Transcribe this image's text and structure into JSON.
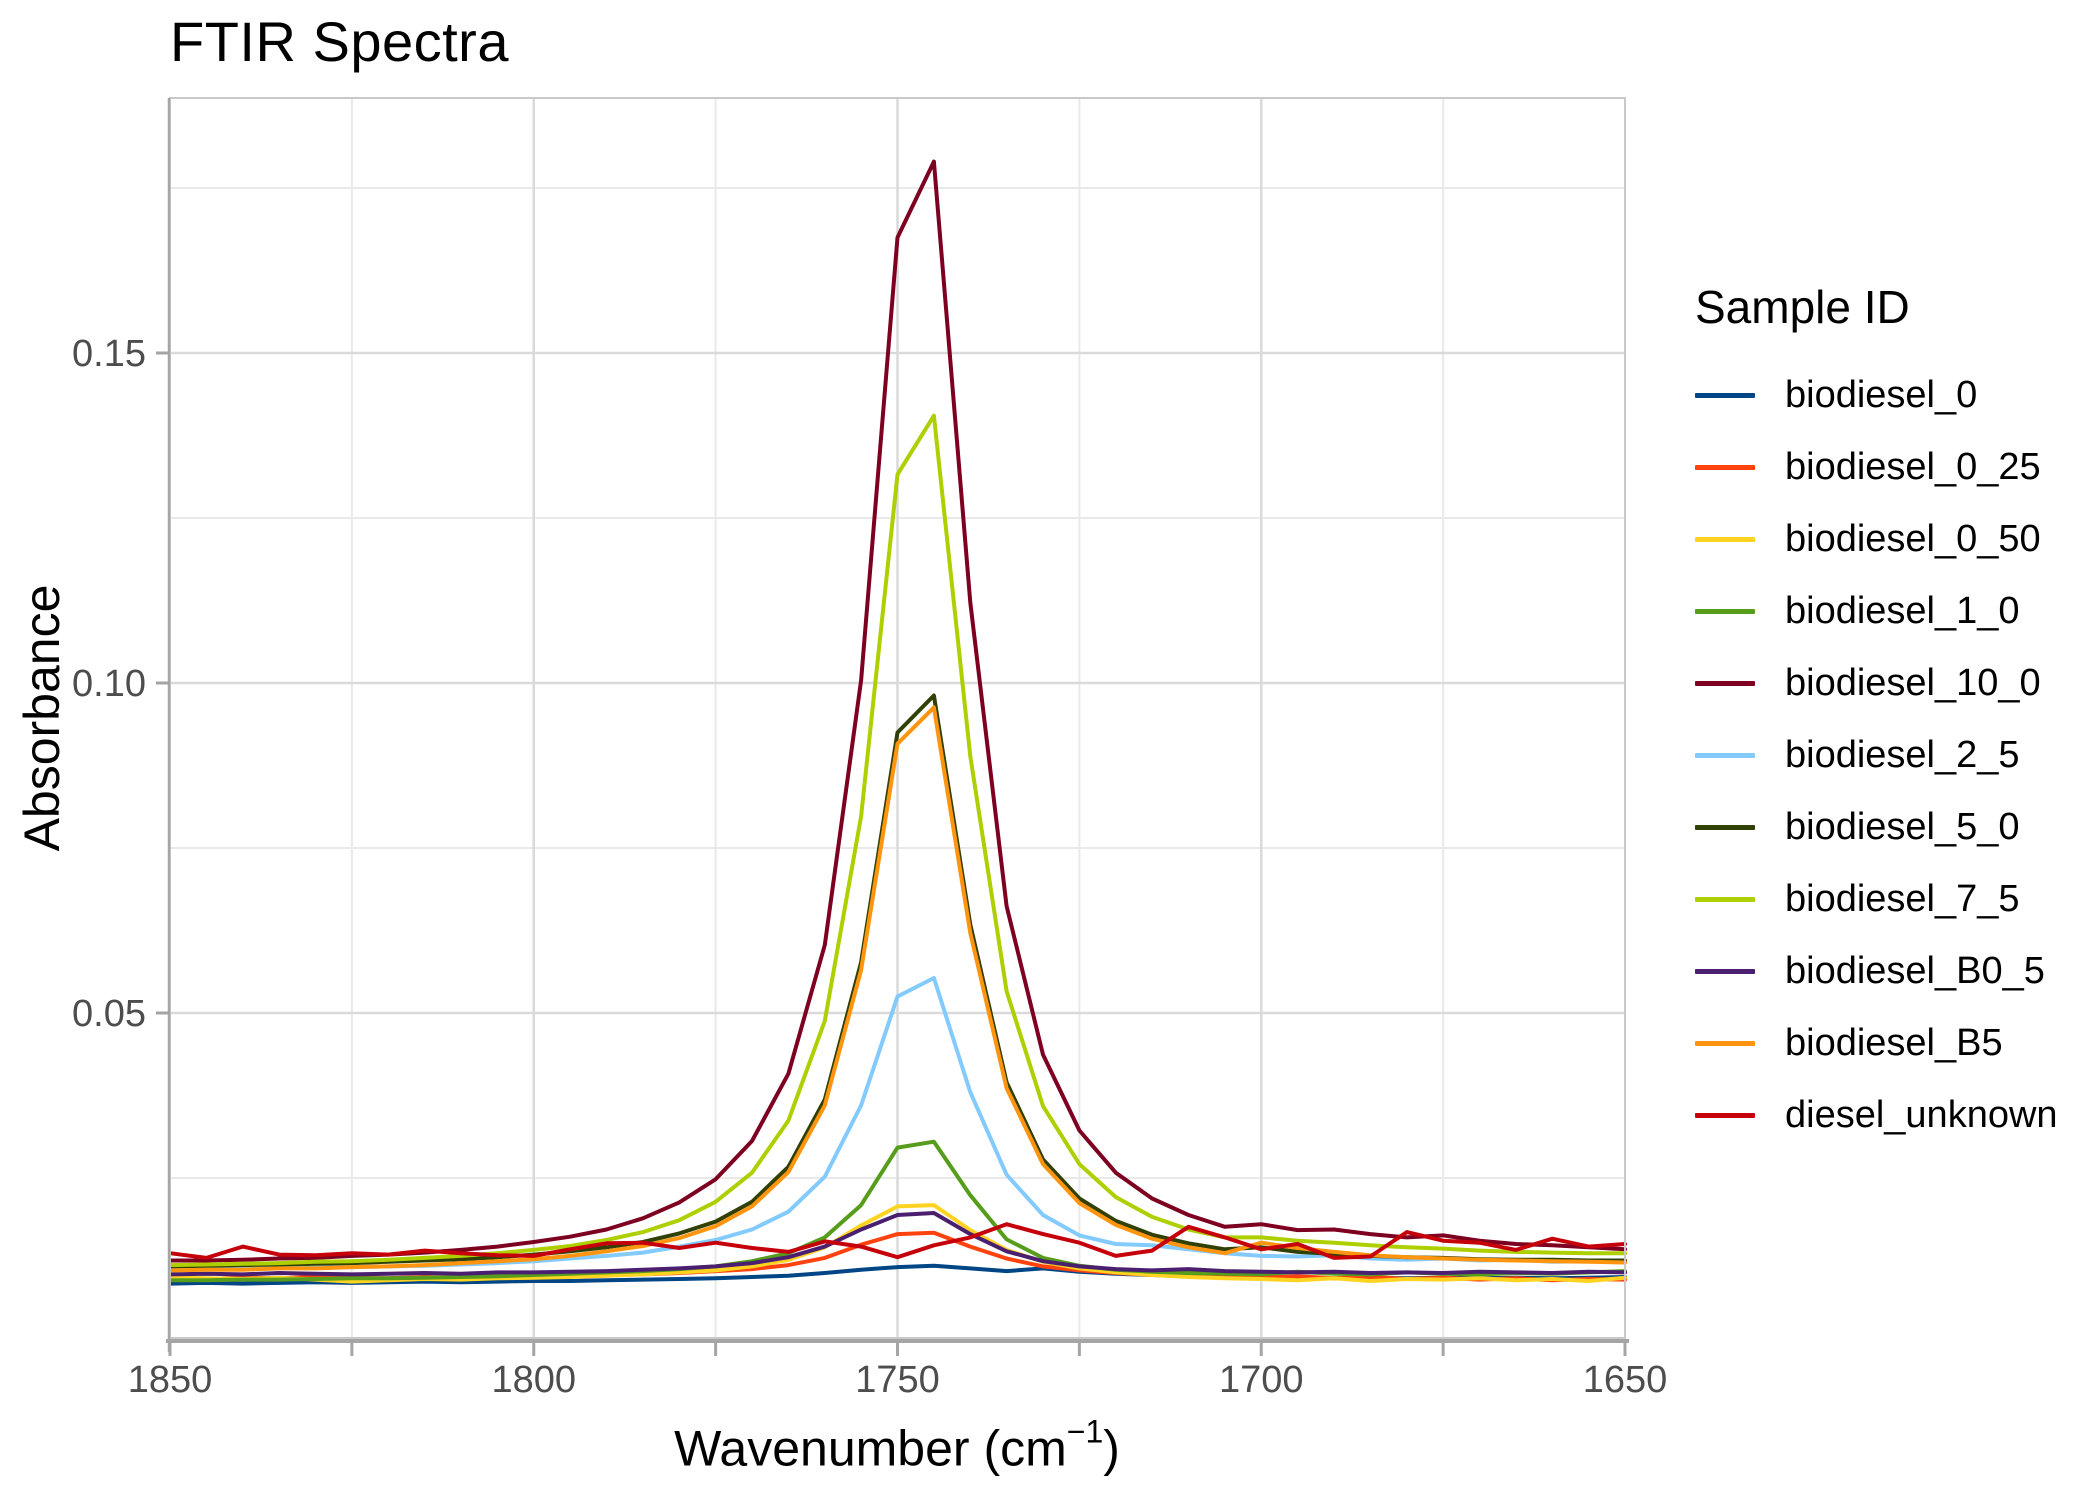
{
  "title": "FTIR Spectra",
  "style": {
    "background": "#FFFFFF",
    "grid_major": "#DADADA",
    "grid_minor": "#E9E9E9",
    "panel_border": "#C9C9C9",
    "axis_line": "#A5A5A5",
    "tick_label_color": "#4D4D4D",
    "title_color": "#000000",
    "series_stroke_width": 4
  },
  "axes": {
    "x": {
      "label_prefix": "Wavenumber (cm",
      "label_sup": "−1",
      "label_suffix": ")",
      "ticks": [
        1850,
        1800,
        1750,
        1700,
        1650
      ],
      "minor_ticks": [
        1825,
        1775,
        1725,
        1675
      ],
      "range": [
        1850,
        1650
      ],
      "reversed": true
    },
    "y": {
      "label": "Absorbance",
      "ticks": [
        0.05,
        0.1,
        0.15
      ],
      "tick_labels": [
        "0.05",
        "0.10",
        "0.15"
      ],
      "minor_ticks": [
        0.025,
        0.075,
        0.125,
        0.175
      ],
      "range": [
        0.0008,
        0.1886
      ]
    }
  },
  "legend": {
    "title": "Sample ID",
    "entries": [
      {
        "label": "biodiesel_0",
        "color": "#004586"
      },
      {
        "label": "biodiesel_0_25",
        "color": "#FF420E"
      },
      {
        "label": "biodiesel_0_50",
        "color": "#FFD320"
      },
      {
        "label": "biodiesel_1_0",
        "color": "#579D1C"
      },
      {
        "label": "biodiesel_10_0",
        "color": "#7E0021"
      },
      {
        "label": "biodiesel_2_5",
        "color": "#83CAFF"
      },
      {
        "label": "biodiesel_5_0",
        "color": "#314004"
      },
      {
        "label": "biodiesel_7_5",
        "color": "#AECF00"
      },
      {
        "label": "biodiesel_B0_5",
        "color": "#4B1F6F"
      },
      {
        "label": "biodiesel_B5",
        "color": "#FF950E"
      },
      {
        "label": "diesel_unknown",
        "color": "#C5000B"
      }
    ]
  },
  "chart_data": {
    "type": "line",
    "title": "FTIR Spectra",
    "xlabel": "Wavenumber (cm^-1)",
    "ylabel": "Absorbance",
    "x_range": [
      1850,
      1650
    ],
    "x_axis_reversed": true,
    "ylim": [
      0,
      0.19
    ],
    "grid": true,
    "legend_position": "right",
    "legend_title": "Sample ID",
    "peak_center_wavenumber": 1746,
    "x": [
      1850,
      1845,
      1840,
      1835,
      1830,
      1825,
      1820,
      1815,
      1810,
      1805,
      1800,
      1795,
      1790,
      1785,
      1780,
      1775,
      1770,
      1765,
      1760,
      1755,
      1750,
      1745,
      1740,
      1735,
      1730,
      1725,
      1720,
      1715,
      1710,
      1705,
      1700,
      1695,
      1690,
      1685,
      1680,
      1675,
      1670,
      1665,
      1660,
      1655,
      1650
    ],
    "series": [
      {
        "name": "biodiesel_0",
        "color": "#004586",
        "peak_absorbance": 0.0117,
        "values": [
          0.009,
          0.0091,
          0.009,
          0.0091,
          0.0092,
          0.0091,
          0.0092,
          0.0093,
          0.0092,
          0.0093,
          0.0094,
          0.0094,
          0.0095,
          0.0096,
          0.0097,
          0.0098,
          0.01,
          0.0102,
          0.0106,
          0.0111,
          0.0115,
          0.0117,
          0.0113,
          0.0109,
          0.0113,
          0.0108,
          0.0105,
          0.0103,
          0.0102,
          0.0101,
          0.01,
          0.0099,
          0.0098,
          0.0099,
          0.0098,
          0.0099,
          0.0098,
          0.0099,
          0.0098,
          0.0099,
          0.01
        ]
      },
      {
        "name": "biodiesel_0_25",
        "color": "#FF420E",
        "peak_absorbance": 0.0167,
        "values": [
          0.0098,
          0.0097,
          0.0099,
          0.0098,
          0.01,
          0.0099,
          0.0098,
          0.01,
          0.0099,
          0.0101,
          0.01,
          0.0101,
          0.0103,
          0.0104,
          0.0106,
          0.0109,
          0.0112,
          0.0118,
          0.0129,
          0.0149,
          0.0165,
          0.0167,
          0.0146,
          0.0128,
          0.0116,
          0.011,
          0.0106,
          0.0103,
          0.0101,
          0.01,
          0.0099,
          0.0101,
          0.0098,
          0.01,
          0.0097,
          0.0099,
          0.0096,
          0.0098,
          0.0095,
          0.0097,
          0.0096
        ]
      },
      {
        "name": "biodiesel_0_50",
        "color": "#FFD320",
        "peak_absorbance": 0.0209,
        "values": [
          0.01,
          0.0098,
          0.0097,
          0.0099,
          0.0096,
          0.0093,
          0.0095,
          0.0097,
          0.0096,
          0.0098,
          0.0099,
          0.01,
          0.0102,
          0.0104,
          0.0107,
          0.011,
          0.0116,
          0.0126,
          0.0145,
          0.0178,
          0.0207,
          0.0209,
          0.0171,
          0.0141,
          0.0123,
          0.0113,
          0.0107,
          0.0103,
          0.01,
          0.0098,
          0.0097,
          0.0095,
          0.0098,
          0.0094,
          0.0097,
          0.0096,
          0.0098,
          0.0095,
          0.0097,
          0.0094,
          0.0099
        ]
      },
      {
        "name": "biodiesel_1_0",
        "color": "#579D1C",
        "peak_absorbance": 0.0305,
        "values": [
          0.0095,
          0.0095,
          0.0096,
          0.0096,
          0.0097,
          0.0098,
          0.0098,
          0.0099,
          0.01,
          0.0101,
          0.0103,
          0.0105,
          0.0107,
          0.0109,
          0.0112,
          0.0116,
          0.0124,
          0.0136,
          0.016,
          0.0209,
          0.0296,
          0.0305,
          0.0224,
          0.0157,
          0.0129,
          0.0117,
          0.0111,
          0.0108,
          0.0106,
          0.0105,
          0.0104,
          0.0108,
          0.0105,
          0.0104,
          0.0107,
          0.0105,
          0.0104,
          0.0106,
          0.0105,
          0.0107,
          0.0109
        ]
      },
      {
        "name": "biodiesel_10_0",
        "color": "#7E0021",
        "peak_absorbance": 0.179,
        "values": [
          0.0125,
          0.0125,
          0.0126,
          0.0128,
          0.0129,
          0.0132,
          0.0134,
          0.0137,
          0.0141,
          0.0146,
          0.0153,
          0.0161,
          0.0172,
          0.0189,
          0.0213,
          0.0248,
          0.0306,
          0.0408,
          0.0603,
          0.1004,
          0.1675,
          0.179,
          0.1122,
          0.0662,
          0.0437,
          0.0322,
          0.0258,
          0.0219,
          0.0194,
          0.0176,
          0.018,
          0.0171,
          0.0172,
          0.0165,
          0.016,
          0.0163,
          0.0155,
          0.015,
          0.0148,
          0.0145,
          0.0142
        ]
      },
      {
        "name": "biodiesel_2_5",
        "color": "#83CAFF",
        "peak_absorbance": 0.0553,
        "values": [
          0.0111,
          0.0112,
          0.0112,
          0.0113,
          0.0114,
          0.0115,
          0.0116,
          0.0117,
          0.0119,
          0.0121,
          0.0124,
          0.0128,
          0.0132,
          0.0137,
          0.0146,
          0.0156,
          0.0172,
          0.0199,
          0.0252,
          0.036,
          0.0525,
          0.0553,
          0.038,
          0.0255,
          0.0194,
          0.0163,
          0.015,
          0.0148,
          0.0142,
          0.0136,
          0.0132,
          0.0131,
          0.0133,
          0.0128,
          0.0126,
          0.0128,
          0.0125,
          0.0126,
          0.0123,
          0.0124,
          0.0122
        ]
      },
      {
        "name": "biodiesel_5_0",
        "color": "#314004",
        "peak_absorbance": 0.0981,
        "values": [
          0.0116,
          0.0117,
          0.0118,
          0.0119,
          0.012,
          0.0121,
          0.0123,
          0.0125,
          0.0127,
          0.013,
          0.0134,
          0.0139,
          0.0145,
          0.0153,
          0.0166,
          0.0184,
          0.0214,
          0.0267,
          0.0369,
          0.0577,
          0.0925,
          0.0981,
          0.0634,
          0.0395,
          0.0278,
          0.0219,
          0.0185,
          0.0164,
          0.0151,
          0.0142,
          0.0145,
          0.0138,
          0.0135,
          0.0132,
          0.013,
          0.0129,
          0.0127,
          0.0126,
          0.0126,
          0.0125,
          0.0125
        ]
      },
      {
        "name": "biodiesel_7_5",
        "color": "#AECF00",
        "peak_absorbance": 0.1405,
        "values": [
          0.0118,
          0.0119,
          0.012,
          0.0121,
          0.0123,
          0.0124,
          0.0126,
          0.0129,
          0.0132,
          0.0136,
          0.0141,
          0.0147,
          0.0156,
          0.0168,
          0.0186,
          0.0214,
          0.0258,
          0.0337,
          0.0488,
          0.0798,
          0.1316,
          0.1405,
          0.0889,
          0.0533,
          0.0359,
          0.0271,
          0.0221,
          0.0191,
          0.0172,
          0.016,
          0.016,
          0.0155,
          0.0152,
          0.0148,
          0.0145,
          0.0143,
          0.014,
          0.0138,
          0.0137,
          0.0136,
          0.0136
        ]
      },
      {
        "name": "biodiesel_B0_5",
        "color": "#4B1F6F",
        "peak_absorbance": 0.0197,
        "values": [
          0.0104,
          0.0105,
          0.0104,
          0.0106,
          0.0105,
          0.0104,
          0.0105,
          0.0106,
          0.0105,
          0.0107,
          0.0107,
          0.0108,
          0.0109,
          0.0111,
          0.0113,
          0.0116,
          0.0121,
          0.013,
          0.0146,
          0.0172,
          0.0194,
          0.0197,
          0.0165,
          0.0139,
          0.0124,
          0.0116,
          0.0112,
          0.011,
          0.0112,
          0.0109,
          0.0108,
          0.0107,
          0.0108,
          0.0106,
          0.0107,
          0.0106,
          0.0108,
          0.0107,
          0.0106,
          0.0108,
          0.0107
        ]
      },
      {
        "name": "biodiesel_B5",
        "color": "#FF950E",
        "peak_absorbance": 0.0963,
        "values": [
          0.011,
          0.0111,
          0.0111,
          0.0113,
          0.0113,
          0.0115,
          0.0116,
          0.0118,
          0.0121,
          0.0124,
          0.0127,
          0.0132,
          0.0139,
          0.0147,
          0.0159,
          0.0177,
          0.0207,
          0.0259,
          0.036,
          0.0565,
          0.0908,
          0.0963,
          0.0621,
          0.0386,
          0.0271,
          0.0212,
          0.0179,
          0.0158,
          0.0145,
          0.0136,
          0.0152,
          0.0144,
          0.0138,
          0.0133,
          0.013,
          0.0128,
          0.0126,
          0.0125,
          0.0124,
          0.0123,
          0.0122
        ]
      },
      {
        "name": "diesel_unknown",
        "color": "#C5000B",
        "peak_absorbance": 0.0182,
        "values": [
          0.0136,
          0.0129,
          0.0146,
          0.0134,
          0.0133,
          0.0136,
          0.0134,
          0.014,
          0.0136,
          0.0133,
          0.0132,
          0.0142,
          0.0151,
          0.0152,
          0.0144,
          0.0152,
          0.0144,
          0.0138,
          0.0154,
          0.0146,
          0.013,
          0.0148,
          0.016,
          0.018,
          0.0165,
          0.0152,
          0.0132,
          0.014,
          0.0176,
          0.016,
          0.0142,
          0.015,
          0.0129,
          0.0131,
          0.0168,
          0.0155,
          0.0152,
          0.0141,
          0.0158,
          0.0146,
          0.015
        ]
      }
    ]
  }
}
